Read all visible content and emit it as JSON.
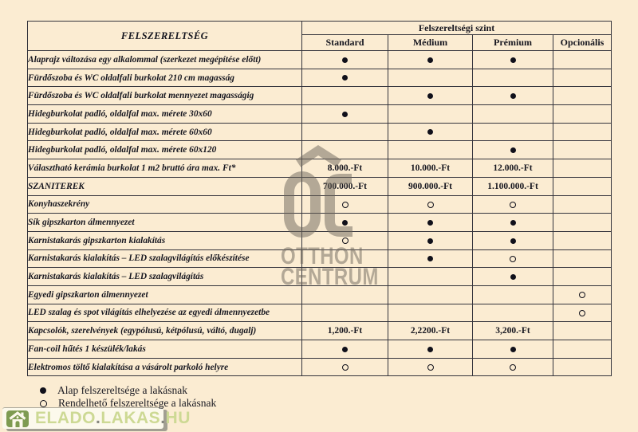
{
  "table": {
    "corner_header": "FELSZERELTSÉG",
    "group_header": "Felszereltségi szint",
    "levels": [
      "Standard",
      "Médium",
      "Prémium",
      "Opcionális"
    ],
    "rows": [
      {
        "label": "Alaprajz változása egy alkalommal (szerkezet megépítése előtt)",
        "cells": [
          "dot",
          "dot",
          "dot",
          ""
        ]
      },
      {
        "label": "Fürdőszoba és WC oldalfali burkolat 210 cm magasság",
        "cells": [
          "dot",
          "",
          "",
          ""
        ]
      },
      {
        "label": "Fürdőszoba és WC oldalfali burkolat mennyezet magasságig",
        "cells": [
          "",
          "dot",
          "dot",
          ""
        ]
      },
      {
        "label": "Hidegburkolat  padló, oldalfal max. mérete 30x60",
        "cells": [
          "dot",
          "",
          "",
          ""
        ]
      },
      {
        "label": "Hidegburkolat  padló, oldalfal  max. mérete 60x60",
        "cells": [
          "",
          "dot",
          "",
          ""
        ]
      },
      {
        "label": "Hidegburkolat  padló, oldalfal max. mérete 60x120",
        "cells": [
          "",
          "",
          "dot",
          ""
        ]
      },
      {
        "label": "Választható kerámia burkolat 1 m2 bruttó ára max. Ft*",
        "cells": [
          "8.000.-Ft",
          "10.000.-Ft",
          "12.000.-Ft",
          ""
        ]
      },
      {
        "label": "SZANITEREK",
        "cells": [
          "700.000.-Ft",
          "900.000.-Ft",
          "1.100.000.-Ft",
          ""
        ]
      },
      {
        "label": "Konyhaszekrény",
        "cells": [
          "circle",
          "circle",
          "circle",
          ""
        ]
      },
      {
        "label": "Sík gipszkarton álmennyezet",
        "cells": [
          "dot",
          "dot",
          "dot",
          ""
        ]
      },
      {
        "label": "Karnistakarás gipszkarton kialakítás",
        "cells": [
          "circle",
          "dot",
          "dot",
          ""
        ]
      },
      {
        "label": "Karnistakarás kialakítás – LED szalagvilágítás előkészítése",
        "cells": [
          "",
          "dot",
          "circle",
          ""
        ]
      },
      {
        "label": "Karnistakarás kialakítás – LED szalagvilágítás",
        "cells": [
          "",
          "",
          "dot",
          ""
        ]
      },
      {
        "label": "Egyedi gipszkarton álmennyezet",
        "cells": [
          "",
          "",
          "",
          "circle"
        ]
      },
      {
        "label": "LED szalag és spot világítás elhelyezése az egyedi álmennyezetbe",
        "cells": [
          "",
          "",
          "",
          "circle"
        ]
      },
      {
        "label": "Kapcsolók, szerelvények (egypólusú, kétpólusú, váltó, dugalj)",
        "cells": [
          "1,200.-Ft",
          "2,2200.-Ft",
          "3,200.-Ft",
          ""
        ]
      },
      {
        "label": "Fan-coil hűtés 1 készülék/lakás",
        "cells": [
          "dot",
          "dot",
          "dot",
          ""
        ]
      },
      {
        "label": "Elektromos töltő kialakítása a vásárolt parkoló helyre",
        "cells": [
          "circle",
          "circle",
          "circle",
          ""
        ]
      }
    ]
  },
  "legend": {
    "items": [
      {
        "marker": "filled-dot",
        "label": "Alap felszereltsége a lakásnak"
      },
      {
        "marker": "open-circle",
        "label": "Rendelhető felszereltsége a lakásnak"
      }
    ]
  },
  "watermarks": {
    "otthon_centrum": {
      "line1": "OTTHON",
      "line2": "CENTRUM"
    },
    "elado_lakas": {
      "segments": [
        "ELADO",
        "LAKAS",
        "HU"
      ],
      "separator": "."
    }
  },
  "colors": {
    "background": "#fbecd2",
    "border": "#34343c",
    "text": "#16161f",
    "watermark_gray": "#6e675b",
    "elado_green": "#cdd994",
    "elado_icon_green": "#7e9b51"
  }
}
